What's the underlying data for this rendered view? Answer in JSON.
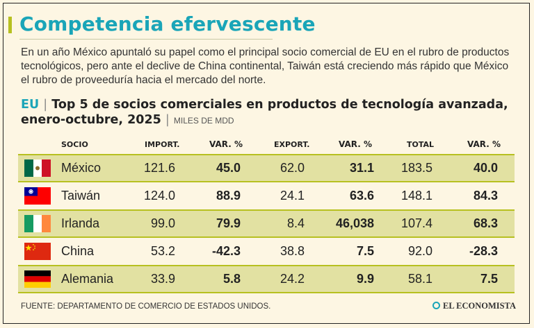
{
  "title": "Competencia efervescente",
  "lede": "En un año México apuntaló su papel como el principal socio comercial de EU en el rubro de productos tecnológicos, pero ante el declive de China continental, Taiwán está creciendo más rápido que México el rubro de proveeduría hacia el mercado del norte.",
  "subhead": {
    "country": "EU",
    "separator": "|",
    "text": "Top 5 de socios comerciales en productos de tecnología avanzada, enero-octubre, 2025",
    "units": "MILES DE MDD"
  },
  "columns": {
    "socio": "SOCIO",
    "import": "IMPORT.",
    "var1": "VAR. %",
    "export": "EXPORT.",
    "var2": "VAR. %",
    "total": "TOTAL",
    "var3": "VAR. %"
  },
  "rows": [
    {
      "name": "México",
      "flag": "mexico-flag",
      "import": "121.6",
      "var_import": "45.0",
      "export": "62.0",
      "var_export": "31.1",
      "total": "183.5",
      "var_total": "40.0"
    },
    {
      "name": "Taiwán",
      "flag": "taiwan-flag",
      "import": "124.0",
      "var_import": "88.9",
      "export": "24.1",
      "var_export": "63.6",
      "total": "148.1",
      "var_total": "84.3"
    },
    {
      "name": "Irlanda",
      "flag": "ireland-flag",
      "import": "99.0",
      "var_import": "79.9",
      "export": "8.4",
      "var_export": "46,038",
      "total": "107.4",
      "var_total": "68.3"
    },
    {
      "name": "China",
      "flag": "china-flag",
      "import": "53.2",
      "var_import": "-42.3",
      "export": "38.8",
      "var_export": "7.5",
      "total": "92.0",
      "var_total": "-28.3"
    },
    {
      "name": "Alemania",
      "flag": "germany-flag",
      "import": "33.9",
      "var_import": "5.8",
      "export": "24.2",
      "var_export": "9.9",
      "total": "58.1",
      "var_total": "7.5"
    }
  ],
  "footer": "FUENTE: DEPARTAMENTO DE COMERCIO DE ESTADOS UNIDOS.",
  "logo": "EL ECONOMISTA",
  "colors": {
    "accent": "#1aa5b8",
    "highlight": "#e2e1a2",
    "rule": "#b7c020",
    "background": "#fdf6e3"
  }
}
